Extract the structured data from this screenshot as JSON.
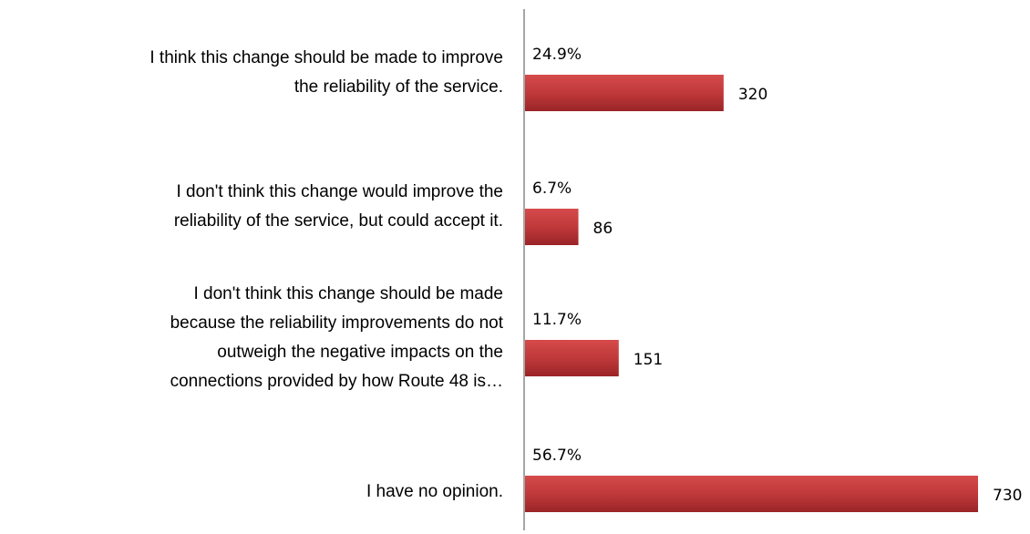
{
  "chart_data": {
    "type": "barh",
    "categories": [
      [
        "I think this change should be made to improve",
        "the reliability of the service."
      ],
      [
        "I don't think this change would improve the",
        "reliability of the service, but could accept it."
      ],
      [
        "I don't think this change should be made",
        "because the reliability improvements do not",
        "outweigh the negative impacts on the",
        "connections provided by how Route 48 is…"
      ],
      [
        "I have no opinion."
      ]
    ],
    "values": [
      320,
      86,
      151,
      730
    ],
    "percentages": {
      "values": [
        24.9,
        6.7,
        11.7,
        56.7
      ],
      "value_labels": [
        "24.9%",
        "6.7%",
        "11.7%",
        "56.7%"
      ]
    },
    "color": "#c0393b",
    "xlim": [
      0,
      730
    ]
  }
}
